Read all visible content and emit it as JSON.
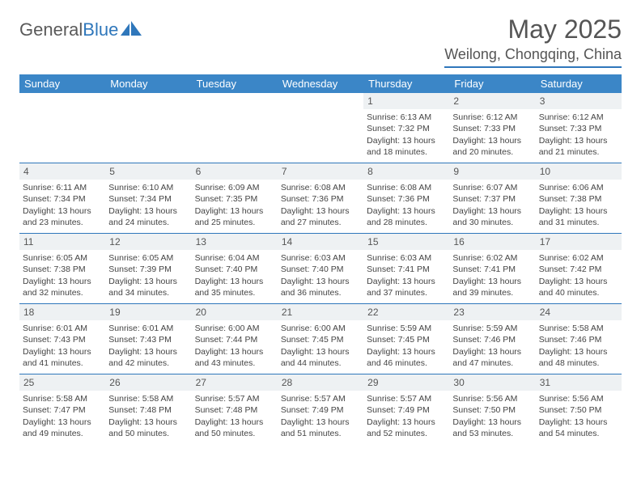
{
  "brand": {
    "part1": "General",
    "part2": "Blue"
  },
  "title": "May 2025",
  "location": "Weilong, Chongqing, China",
  "colors": {
    "header_bg": "#3b86c7",
    "accent": "#2f77bb",
    "num_bg": "#eef1f3",
    "text": "#444444"
  },
  "day_names": [
    "Sunday",
    "Monday",
    "Tuesday",
    "Wednesday",
    "Thursday",
    "Friday",
    "Saturday"
  ],
  "weeks": [
    [
      null,
      null,
      null,
      null,
      {
        "n": "1",
        "sr": "6:13 AM",
        "ss": "7:32 PM",
        "dl": "13 hours and 18 minutes."
      },
      {
        "n": "2",
        "sr": "6:12 AM",
        "ss": "7:33 PM",
        "dl": "13 hours and 20 minutes."
      },
      {
        "n": "3",
        "sr": "6:12 AM",
        "ss": "7:33 PM",
        "dl": "13 hours and 21 minutes."
      }
    ],
    [
      {
        "n": "4",
        "sr": "6:11 AM",
        "ss": "7:34 PM",
        "dl": "13 hours and 23 minutes."
      },
      {
        "n": "5",
        "sr": "6:10 AM",
        "ss": "7:34 PM",
        "dl": "13 hours and 24 minutes."
      },
      {
        "n": "6",
        "sr": "6:09 AM",
        "ss": "7:35 PM",
        "dl": "13 hours and 25 minutes."
      },
      {
        "n": "7",
        "sr": "6:08 AM",
        "ss": "7:36 PM",
        "dl": "13 hours and 27 minutes."
      },
      {
        "n": "8",
        "sr": "6:08 AM",
        "ss": "7:36 PM",
        "dl": "13 hours and 28 minutes."
      },
      {
        "n": "9",
        "sr": "6:07 AM",
        "ss": "7:37 PM",
        "dl": "13 hours and 30 minutes."
      },
      {
        "n": "10",
        "sr": "6:06 AM",
        "ss": "7:38 PM",
        "dl": "13 hours and 31 minutes."
      }
    ],
    [
      {
        "n": "11",
        "sr": "6:05 AM",
        "ss": "7:38 PM",
        "dl": "13 hours and 32 minutes."
      },
      {
        "n": "12",
        "sr": "6:05 AM",
        "ss": "7:39 PM",
        "dl": "13 hours and 34 minutes."
      },
      {
        "n": "13",
        "sr": "6:04 AM",
        "ss": "7:40 PM",
        "dl": "13 hours and 35 minutes."
      },
      {
        "n": "14",
        "sr": "6:03 AM",
        "ss": "7:40 PM",
        "dl": "13 hours and 36 minutes."
      },
      {
        "n": "15",
        "sr": "6:03 AM",
        "ss": "7:41 PM",
        "dl": "13 hours and 37 minutes."
      },
      {
        "n": "16",
        "sr": "6:02 AM",
        "ss": "7:41 PM",
        "dl": "13 hours and 39 minutes."
      },
      {
        "n": "17",
        "sr": "6:02 AM",
        "ss": "7:42 PM",
        "dl": "13 hours and 40 minutes."
      }
    ],
    [
      {
        "n": "18",
        "sr": "6:01 AM",
        "ss": "7:43 PM",
        "dl": "13 hours and 41 minutes."
      },
      {
        "n": "19",
        "sr": "6:01 AM",
        "ss": "7:43 PM",
        "dl": "13 hours and 42 minutes."
      },
      {
        "n": "20",
        "sr": "6:00 AM",
        "ss": "7:44 PM",
        "dl": "13 hours and 43 minutes."
      },
      {
        "n": "21",
        "sr": "6:00 AM",
        "ss": "7:45 PM",
        "dl": "13 hours and 44 minutes."
      },
      {
        "n": "22",
        "sr": "5:59 AM",
        "ss": "7:45 PM",
        "dl": "13 hours and 46 minutes."
      },
      {
        "n": "23",
        "sr": "5:59 AM",
        "ss": "7:46 PM",
        "dl": "13 hours and 47 minutes."
      },
      {
        "n": "24",
        "sr": "5:58 AM",
        "ss": "7:46 PM",
        "dl": "13 hours and 48 minutes."
      }
    ],
    [
      {
        "n": "25",
        "sr": "5:58 AM",
        "ss": "7:47 PM",
        "dl": "13 hours and 49 minutes."
      },
      {
        "n": "26",
        "sr": "5:58 AM",
        "ss": "7:48 PM",
        "dl": "13 hours and 50 minutes."
      },
      {
        "n": "27",
        "sr": "5:57 AM",
        "ss": "7:48 PM",
        "dl": "13 hours and 50 minutes."
      },
      {
        "n": "28",
        "sr": "5:57 AM",
        "ss": "7:49 PM",
        "dl": "13 hours and 51 minutes."
      },
      {
        "n": "29",
        "sr": "5:57 AM",
        "ss": "7:49 PM",
        "dl": "13 hours and 52 minutes."
      },
      {
        "n": "30",
        "sr": "5:56 AM",
        "ss": "7:50 PM",
        "dl": "13 hours and 53 minutes."
      },
      {
        "n": "31",
        "sr": "5:56 AM",
        "ss": "7:50 PM",
        "dl": "13 hours and 54 minutes."
      }
    ]
  ],
  "labels": {
    "sunrise": "Sunrise:",
    "sunset": "Sunset:",
    "daylight": "Daylight:"
  }
}
